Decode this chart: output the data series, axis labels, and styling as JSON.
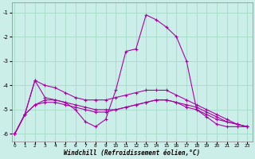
{
  "xlabel": "Windchill (Refroidissement éolien,°C)",
  "background_color": "#cceee8",
  "grid_color": "#aaddcc",
  "line_color": "#aa00aa",
  "x": [
    0,
    1,
    2,
    3,
    4,
    5,
    6,
    7,
    8,
    9,
    10,
    11,
    12,
    13,
    14,
    15,
    16,
    17,
    18,
    19,
    20,
    21,
    22,
    23
  ],
  "curve1": [
    -6.0,
    -5.2,
    -3.8,
    -4.0,
    -4.1,
    -4.3,
    -4.5,
    -4.6,
    -4.6,
    -4.6,
    -4.5,
    -4.4,
    -4.3,
    -4.2,
    -4.2,
    -4.2,
    -4.4,
    -4.6,
    -4.8,
    -5.0,
    -5.2,
    -5.4,
    -5.6,
    -5.7
  ],
  "curve2": [
    -6.0,
    -5.2,
    -4.8,
    -4.7,
    -4.7,
    -4.8,
    -4.9,
    -5.0,
    -5.1,
    -5.1,
    -5.0,
    -4.9,
    -4.8,
    -4.7,
    -4.6,
    -4.6,
    -4.7,
    -4.8,
    -4.9,
    -5.1,
    -5.3,
    -5.5,
    -5.6,
    -5.7
  ],
  "curve3": [
    -6.0,
    -5.2,
    -4.8,
    -4.6,
    -4.6,
    -4.7,
    -4.8,
    -4.9,
    -5.0,
    -5.0,
    -5.0,
    -4.9,
    -4.8,
    -4.7,
    -4.6,
    -4.6,
    -4.7,
    -4.9,
    -5.0,
    -5.2,
    -5.4,
    -5.5,
    -5.6,
    -5.7
  ],
  "curve4": [
    -6.0,
    -5.2,
    -3.8,
    -4.5,
    -4.6,
    -4.7,
    -5.0,
    -5.5,
    -5.7,
    -5.4,
    -4.2,
    -2.6,
    -2.5,
    -1.1,
    -1.3,
    -1.6,
    -2.0,
    -3.0,
    -5.0,
    -5.3,
    -5.6,
    -5.7,
    -5.7,
    -5.7
  ],
  "ylim": [
    -6.3,
    -0.6
  ],
  "yticks": [
    -6,
    -5,
    -4,
    -3,
    -2,
    -1
  ],
  "xticks": [
    0,
    1,
    2,
    3,
    4,
    5,
    6,
    7,
    8,
    9,
    10,
    11,
    12,
    13,
    14,
    15,
    16,
    17,
    18,
    19,
    20,
    21,
    22,
    23
  ]
}
